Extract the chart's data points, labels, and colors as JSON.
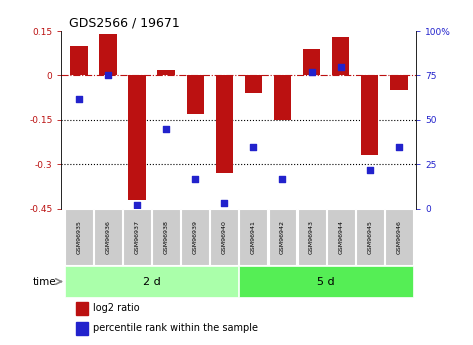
{
  "title": "GDS2566 / 19671",
  "samples": [
    "GSM96935",
    "GSM96936",
    "GSM96937",
    "GSM96938",
    "GSM96939",
    "GSM96940",
    "GSM96941",
    "GSM96942",
    "GSM96943",
    "GSM96944",
    "GSM96945",
    "GSM96946"
  ],
  "log2_ratio": [
    0.1,
    0.14,
    -0.42,
    0.02,
    -0.13,
    -0.33,
    -0.06,
    -0.15,
    0.09,
    0.13,
    -0.27,
    -0.05
  ],
  "percentile": [
    62,
    75,
    2,
    45,
    17,
    3,
    35,
    17,
    77,
    80,
    22,
    35
  ],
  "ylim_left": [
    -0.45,
    0.15
  ],
  "ylim_right": [
    0,
    100
  ],
  "yticks_left": [
    0.15,
    0.0,
    -0.15,
    -0.3,
    -0.45
  ],
  "yticks_right": [
    100,
    75,
    50,
    25,
    0
  ],
  "bar_color": "#BB1111",
  "dot_color": "#2222CC",
  "group1_label": "2 d",
  "group2_label": "5 d",
  "group1_indices": [
    0,
    1,
    2,
    3,
    4,
    5
  ],
  "group2_indices": [
    6,
    7,
    8,
    9,
    10,
    11
  ],
  "group1_color": "#AAFFAA",
  "group2_color": "#55EE55",
  "xlabel_group": "time",
  "legend_bar": "log2 ratio",
  "legend_dot": "percentile rank within the sample",
  "dotted_lines": [
    -0.15,
    -0.3
  ],
  "bar_width": 0.6,
  "dot_size": 22
}
